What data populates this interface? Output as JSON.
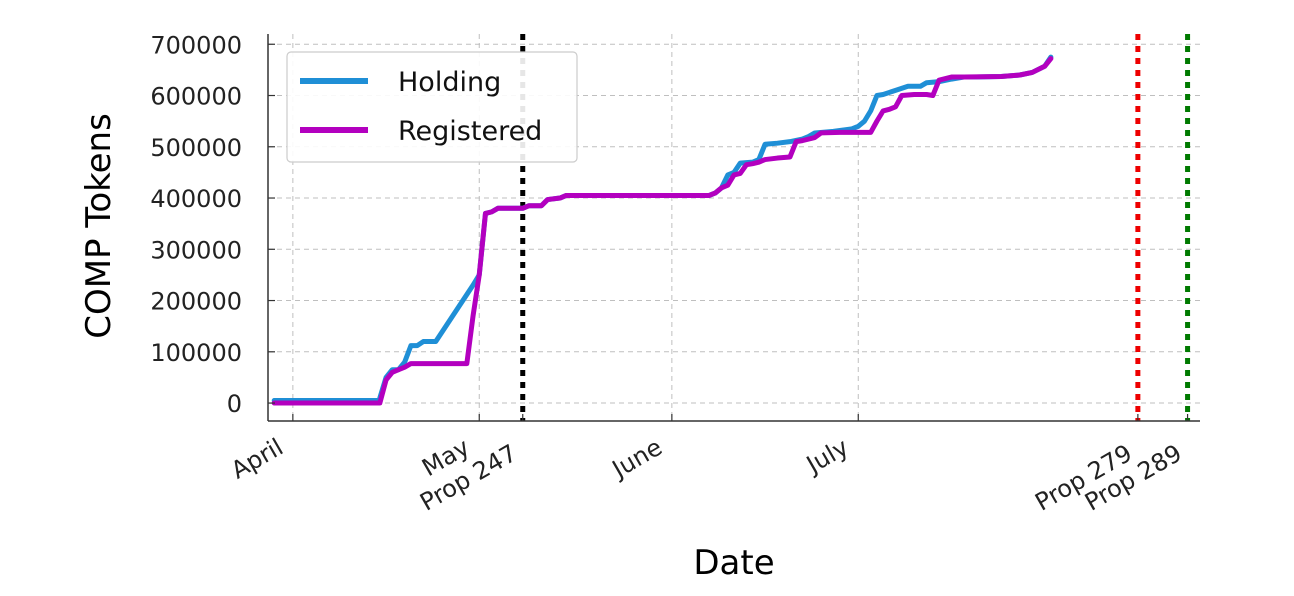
{
  "chart_data": {
    "type": "line",
    "title": "",
    "xlabel": "Date",
    "ylabel": "COMP Tokens",
    "x_axis_type": "date",
    "xlim": [
      "2020-03-28",
      "2020-08-25"
    ],
    "ylim": [
      -35000,
      720000
    ],
    "grid": true,
    "legend_position": "top-left",
    "y_ticks": [
      0,
      100000,
      200000,
      300000,
      400000,
      500000,
      600000,
      700000
    ],
    "y_tick_labels": [
      "0",
      "100000",
      "200000",
      "300000",
      "400000",
      "500000",
      "600000",
      "700000"
    ],
    "x_ticks": [
      {
        "date": "2020-04-01",
        "label": "April"
      },
      {
        "date": "2020-05-01",
        "label": "May"
      },
      {
        "date": "2020-06-01",
        "label": "June"
      },
      {
        "date": "2020-07-01",
        "label": "July"
      }
    ],
    "vertical_lines": [
      {
        "date": "2020-05-08",
        "label": "Prop 247",
        "color": "#000000"
      },
      {
        "date": "2020-08-15",
        "label": "Prop 279",
        "color": "#ee0000"
      },
      {
        "date": "2020-08-23",
        "label": "Prop 289",
        "color": "#007a00"
      }
    ],
    "series": [
      {
        "name": "Holding",
        "color": "#1f8fd6",
        "points": [
          [
            "2020-03-29",
            5000
          ],
          [
            "2020-04-01",
            5000
          ],
          [
            "2020-04-08",
            5000
          ],
          [
            "2020-04-15",
            5000
          ],
          [
            "2020-04-15",
            10000
          ],
          [
            "2020-04-16",
            50000
          ],
          [
            "2020-04-17",
            65000
          ],
          [
            "2020-04-18",
            65000
          ],
          [
            "2020-04-19",
            80000
          ],
          [
            "2020-04-20",
            112000
          ],
          [
            "2020-04-21",
            112000
          ],
          [
            "2020-04-22",
            120000
          ],
          [
            "2020-04-24",
            120000
          ],
          [
            "2020-04-30",
            230000
          ],
          [
            "2020-05-01",
            250000
          ],
          [
            "2020-05-02",
            370000
          ],
          [
            "2020-05-03",
            373000
          ],
          [
            "2020-05-04",
            380000
          ],
          [
            "2020-05-07",
            380000
          ],
          [
            "2020-05-08",
            380000
          ],
          [
            "2020-05-09",
            385000
          ],
          [
            "2020-05-11",
            385000
          ],
          [
            "2020-05-12",
            397000
          ],
          [
            "2020-05-14",
            400000
          ],
          [
            "2020-05-15",
            405000
          ],
          [
            "2020-06-07",
            405000
          ],
          [
            "2020-06-08",
            410000
          ],
          [
            "2020-06-09",
            420000
          ],
          [
            "2020-06-10",
            445000
          ],
          [
            "2020-06-11",
            450000
          ],
          [
            "2020-06-12",
            468000
          ],
          [
            "2020-06-14",
            470000
          ],
          [
            "2020-06-15",
            475000
          ],
          [
            "2020-06-16",
            505000
          ],
          [
            "2020-06-18",
            507000
          ],
          [
            "2020-06-20",
            510000
          ],
          [
            "2020-06-22",
            515000
          ],
          [
            "2020-06-23",
            520000
          ],
          [
            "2020-06-24",
            527000
          ],
          [
            "2020-06-27",
            530000
          ],
          [
            "2020-06-30",
            535000
          ],
          [
            "2020-07-01",
            540000
          ],
          [
            "2020-07-02",
            550000
          ],
          [
            "2020-07-03",
            570000
          ],
          [
            "2020-07-04",
            600000
          ],
          [
            "2020-07-05",
            602000
          ],
          [
            "2020-07-07",
            610000
          ],
          [
            "2020-07-09",
            618000
          ],
          [
            "2020-07-11",
            618000
          ],
          [
            "2020-07-12",
            625000
          ],
          [
            "2020-07-14",
            627000
          ],
          [
            "2020-07-16",
            632000
          ],
          [
            "2020-07-18",
            636000
          ],
          [
            "2020-07-20",
            636000
          ],
          [
            "2020-07-24",
            637000
          ],
          [
            "2020-07-27",
            640000
          ],
          [
            "2020-07-29",
            645000
          ],
          [
            "2020-07-31",
            657000
          ],
          [
            "2020-08-01",
            675000
          ]
        ]
      },
      {
        "name": "Registered",
        "color": "#b300bf",
        "points": [
          [
            "2020-03-29",
            0
          ],
          [
            "2020-04-01",
            0
          ],
          [
            "2020-04-08",
            0
          ],
          [
            "2020-04-15",
            0
          ],
          [
            "2020-04-16",
            45000
          ],
          [
            "2020-04-17",
            60000
          ],
          [
            "2020-04-18",
            65000
          ],
          [
            "2020-04-19",
            70000
          ],
          [
            "2020-04-20",
            77000
          ],
          [
            "2020-04-22",
            77000
          ],
          [
            "2020-04-26",
            77000
          ],
          [
            "2020-04-28",
            77000
          ],
          [
            "2020-04-29",
            77000
          ],
          [
            "2020-04-30",
            170000
          ],
          [
            "2020-05-01",
            250000
          ],
          [
            "2020-05-02",
            370000
          ],
          [
            "2020-05-03",
            373000
          ],
          [
            "2020-05-04",
            380000
          ],
          [
            "2020-05-07",
            380000
          ],
          [
            "2020-05-08",
            380000
          ],
          [
            "2020-05-09",
            385000
          ],
          [
            "2020-05-11",
            385000
          ],
          [
            "2020-05-12",
            397000
          ],
          [
            "2020-05-14",
            400000
          ],
          [
            "2020-05-15",
            405000
          ],
          [
            "2020-06-07",
            405000
          ],
          [
            "2020-06-08",
            410000
          ],
          [
            "2020-06-09",
            420000
          ],
          [
            "2020-06-10",
            425000
          ],
          [
            "2020-06-11",
            445000
          ],
          [
            "2020-06-12",
            448000
          ],
          [
            "2020-06-13",
            465000
          ],
          [
            "2020-06-14",
            467000
          ],
          [
            "2020-06-15",
            470000
          ],
          [
            "2020-06-16",
            475000
          ],
          [
            "2020-06-18",
            478000
          ],
          [
            "2020-06-20",
            480000
          ],
          [
            "2020-06-21",
            510000
          ],
          [
            "2020-06-22",
            512000
          ],
          [
            "2020-06-24",
            518000
          ],
          [
            "2020-06-25",
            527000
          ],
          [
            "2020-06-28",
            528000
          ],
          [
            "2020-07-03",
            528000
          ],
          [
            "2020-07-04",
            550000
          ],
          [
            "2020-07-05",
            570000
          ],
          [
            "2020-07-06",
            573000
          ],
          [
            "2020-07-07",
            578000
          ],
          [
            "2020-07-08",
            600000
          ],
          [
            "2020-07-10",
            602000
          ],
          [
            "2020-07-12",
            602000
          ],
          [
            "2020-07-13",
            600000
          ],
          [
            "2020-07-14",
            630000
          ],
          [
            "2020-07-16",
            636000
          ],
          [
            "2020-07-18",
            636000
          ],
          [
            "2020-07-24",
            637000
          ],
          [
            "2020-07-27",
            640000
          ],
          [
            "2020-07-29",
            645000
          ],
          [
            "2020-07-31",
            657000
          ],
          [
            "2020-08-01",
            672000
          ]
        ]
      }
    ]
  }
}
